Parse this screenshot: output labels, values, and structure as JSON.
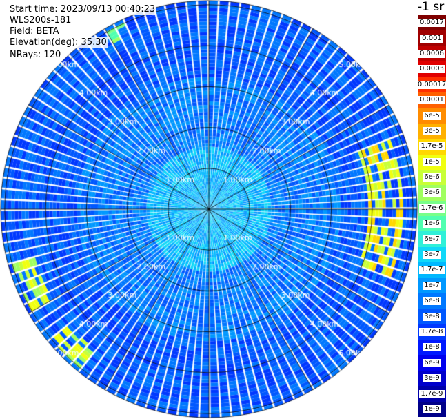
{
  "info": {
    "start_time": "Start time: 2023/09/13 00:40:23",
    "instrument": "WLS200s-181",
    "field": "Field: BETA",
    "elevation": "Elevation(deg): 35.30",
    "nrays": "NRays: 120"
  },
  "colorbar": {
    "unit": "-1 sr",
    "labels": [
      "0.0017",
      "0.001",
      "0.0006",
      "0.0003",
      "0.00017",
      "0.0001",
      "6e-5",
      "3e-5",
      "1.7e-5",
      "1e-5",
      "6e-6",
      "3e-6",
      "1.7e-6",
      "1e-6",
      "6e-7",
      "3e-7",
      "1.7e-7",
      "1e-7",
      "6e-8",
      "3e-8",
      "1.7e-8",
      "1e-8",
      "6e-9",
      "3e-9",
      "1.7e-9",
      "1e-9"
    ],
    "colors": [
      "#800000",
      "#a00000",
      "#c00000",
      "#e00000",
      "#ff3000",
      "#ff6000",
      "#ff8c00",
      "#ffb000",
      "#ffd800",
      "#f0ff10",
      "#c8ff38",
      "#a0ff60",
      "#78ff88",
      "#50ffb0",
      "#30f0d8",
      "#10d8f8",
      "#00b8ff",
      "#0098ff",
      "#0078ff",
      "#0058ff",
      "#0038ff",
      "#0018ff",
      "#0000ee",
      "#0000cc",
      "#0000aa",
      "#000088"
    ]
  },
  "chart_data": {
    "type": "heatmap",
    "projection": "polar (PPI)",
    "rays": 120,
    "range_rings_km": [
      1,
      2,
      3,
      4,
      5
    ],
    "ring_labels": [
      "1.00km",
      "2.00km",
      "3.00km",
      "4.00km",
      "5.00km"
    ],
    "azimuth_lines_deg": [
      0,
      30,
      60,
      90,
      120,
      150,
      180,
      210,
      240,
      270,
      300,
      330
    ],
    "max_range_km": 5.1,
    "dominant_class_index": {
      "near_center": 16,
      "mid_range": 18,
      "far_range": 19
    },
    "features": [
      {
        "description": "east",
        "az_from_deg": 70,
        "az_to_deg": 110,
        "range_km": [
          3.9,
          4.8
        ],
        "class_index": 9
      },
      {
        "description": "southwest",
        "az_from_deg": 240,
        "az_to_deg": 255,
        "range_km": [
          4.4,
          5.0
        ],
        "class_index": 10
      },
      {
        "description": "southwest",
        "az_from_deg": 220,
        "az_to_deg": 232,
        "range_km": [
          4.4,
          5.0
        ],
        "class_index": 10
      },
      {
        "description": "northwest",
        "az_from_deg": 330,
        "az_to_deg": 336,
        "range_km": [
          4.7,
          5.0
        ],
        "class_index": 12
      }
    ]
  }
}
